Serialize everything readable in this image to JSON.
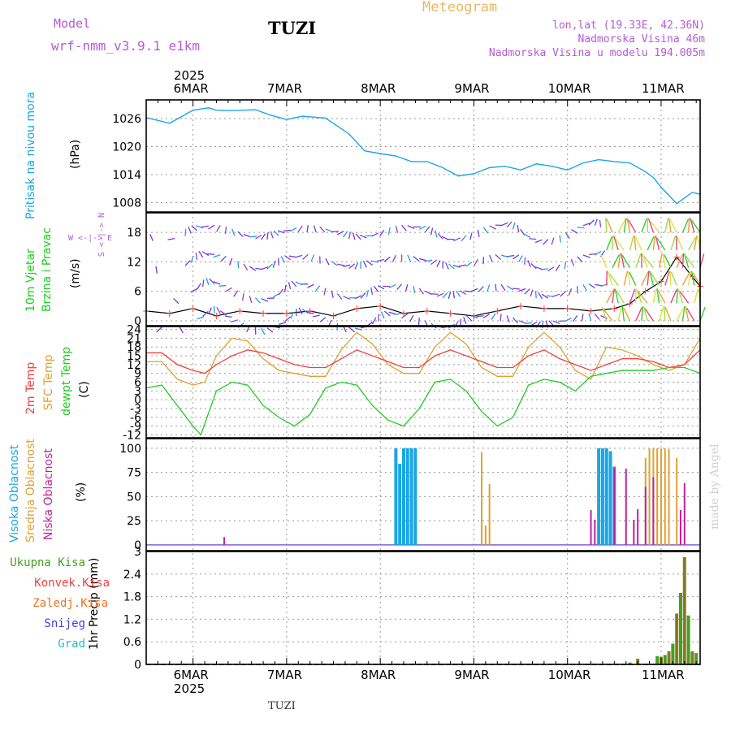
{
  "header": {
    "model_label": "Model",
    "model_name": "wrf-nmm_v3.9.1 e1km",
    "station": "TUZI",
    "product": "Meteogram",
    "coords": "lon,lat (19.33E, 42.36N)",
    "elevation": "Nadmorska Visina 46m",
    "model_elevation": "Nadmorska Visina u modelu 194.005m"
  },
  "footer": {
    "station": "TUZI",
    "credit": "made by Angel"
  },
  "time_axis": {
    "year": "2025",
    "labels": [
      "6MAR",
      "7MAR",
      "8MAR",
      "9MAR",
      "10MAR",
      "11MAR"
    ]
  },
  "colors": {
    "pressure": "#1aa6e6",
    "temp2m": "#f04040",
    "sfc_temp": "#e0a030",
    "dewpoint": "#22cc22",
    "high_cloud": "#1aa6e6",
    "mid_cloud": "#e0a030",
    "low_cloud": "#c020a0",
    "total_precip": "#44a020",
    "conv_precip": "#f04040",
    "frozen_precip": "#f07020",
    "snow": "#4040e0",
    "graupel": "#20c0c0"
  },
  "panels": {
    "pressure": {
      "ylabel_name": "Pritisak na nivou mora",
      "ylabel_unit": "(hPa)",
      "ticks": [
        "1026",
        "1020",
        "1014",
        "1008"
      ]
    },
    "wind": {
      "ylabel_name": "10m Vjetar",
      "ylabel_name2": "Brzina i Pravac",
      "ylabel_unit": "(m/s)",
      "compass_ns": "S <-|-> N",
      "compass_we": "W <-|-> E",
      "ticks": [
        "18",
        "12",
        "6",
        "0"
      ]
    },
    "temperature": {
      "label_t2m": "2m Temp",
      "label_sfc": "SFC Temp",
      "label_dew": "dewpt Temp",
      "ylabel_unit": "(C)",
      "ticks": [
        "24",
        "21",
        "18",
        "15",
        "12",
        "9",
        "6",
        "3",
        "0",
        "-3",
        "-6",
        "-9",
        "-12"
      ]
    },
    "clouds": {
      "label_high": "Visoka Oblacnost",
      "label_mid": "Srednja Oblacnost",
      "label_low": "Niska Oblacnost",
      "ylabel_unit": "(%)",
      "ticks": [
        "100",
        "75",
        "50",
        "25",
        "0"
      ]
    },
    "precip": {
      "legend": [
        "Ukupna Kisa",
        "Konvek.Kisa",
        "Zaledj.Kisa",
        "Snijeg",
        "Grad"
      ],
      "ylabel_unit": "1hr Precip (mm)",
      "ticks": [
        "3",
        "2.4",
        "1.8",
        "1.2",
        "0.6",
        "0"
      ]
    }
  },
  "chart_data": [
    {
      "type": "line",
      "title": "",
      "ylabel": "Pritisak na nivou mora (hPa)",
      "x_unit": "hours from 6MAR 00Z",
      "ylim": [
        1006,
        1030
      ],
      "series": [
        {
          "name": "Pritisak na nivou mora",
          "x": [
            -12,
            -6,
            0,
            4,
            6,
            10,
            16,
            20,
            24,
            28,
            34,
            40,
            44,
            48,
            52,
            56,
            60,
            64,
            68,
            72,
            76,
            80,
            84,
            88,
            92,
            96,
            100,
            104,
            108,
            112,
            116,
            118,
            120,
            124,
            128,
            130
          ],
          "y": [
            1026.2,
            1025,
            1027.8,
            1028.3,
            1027.8,
            1027.7,
            1027.9,
            1026.7,
            1025.8,
            1026.5,
            1026.1,
            1022.7,
            1019.1,
            1018.5,
            1018.0,
            1016.8,
            1016.8,
            1015.5,
            1013.7,
            1014.2,
            1015.5,
            1015.8,
            1015.0,
            1016.3,
            1015.8,
            1015.0,
            1016.5,
            1017.2,
            1016.8,
            1016.5,
            1014.6,
            1013.4,
            1011.3,
            1007.8,
            1010.2,
            1009.8
          ]
        }
      ]
    },
    {
      "type": "line",
      "title": "",
      "ylabel": "10m Vjetar Brzina i Pravac (m/s)",
      "x_unit": "hours from 6MAR 00Z",
      "ylim": [
        -1,
        22
      ],
      "series": [
        {
          "name": "",
          "x": [
            -12,
            -6,
            0,
            6,
            12,
            18,
            24,
            30,
            36,
            42,
            48,
            54,
            60,
            66,
            72,
            78,
            84,
            90,
            96,
            102,
            108,
            112,
            116,
            120,
            124,
            128,
            130
          ],
          "y": [
            2.0,
            1.5,
            2.5,
            1.0,
            2.0,
            1.5,
            1.5,
            2.0,
            1.0,
            2.5,
            3.0,
            1.5,
            2.0,
            1.5,
            1.0,
            2.0,
            3.0,
            2.5,
            2.5,
            2.0,
            2.5,
            3.5,
            6.0,
            8.0,
            13.0,
            9.0,
            7.0
          ]
        }
      ]
    },
    {
      "type": "line",
      "title": "",
      "ylabel": "(C)",
      "x_unit": "hours from 6MAR 00Z",
      "ylim": [
        -13,
        25
      ],
      "series": [
        {
          "name": "2m Temp",
          "x": [
            -12,
            -8,
            -4,
            0,
            3,
            6,
            10,
            14,
            18,
            22,
            26,
            30,
            34,
            38,
            42,
            46,
            50,
            54,
            58,
            62,
            66,
            70,
            74,
            78,
            82,
            86,
            90,
            94,
            98,
            102,
            106,
            110,
            114,
            118,
            122,
            126,
            130
          ],
          "y": [
            16,
            16,
            12,
            10,
            9,
            12,
            15,
            17,
            16,
            14,
            12,
            11,
            11,
            14,
            17,
            15,
            13,
            11,
            11,
            15,
            17,
            15,
            13,
            11,
            11,
            15,
            17,
            14,
            12,
            10,
            12,
            14,
            14,
            13,
            11,
            12,
            17
          ]
        },
        {
          "name": "SFC Temp",
          "x": [
            -12,
            -8,
            -4,
            0,
            3,
            6,
            10,
            14,
            18,
            22,
            26,
            30,
            34,
            38,
            42,
            46,
            50,
            54,
            58,
            62,
            66,
            70,
            74,
            78,
            82,
            86,
            90,
            94,
            98,
            102,
            106,
            110,
            114,
            118,
            122,
            126,
            130
          ],
          "y": [
            13,
            13,
            7,
            5,
            6,
            15,
            21,
            20,
            14,
            10,
            9,
            8,
            8,
            17,
            23,
            19,
            12,
            9,
            9,
            18,
            23,
            19,
            11,
            8,
            8,
            18,
            23,
            18,
            10,
            7,
            18,
            17,
            15,
            12,
            10,
            12,
            21
          ]
        },
        {
          "name": "dewpt Temp",
          "x": [
            -12,
            -8,
            -4,
            0,
            2,
            6,
            10,
            14,
            18,
            22,
            26,
            30,
            34,
            38,
            42,
            46,
            50,
            54,
            58,
            62,
            66,
            70,
            74,
            78,
            82,
            86,
            90,
            94,
            98,
            102,
            106,
            110,
            114,
            118,
            122,
            126,
            130
          ],
          "y": [
            4,
            5,
            -2,
            -9,
            -12,
            3,
            6,
            5,
            -2,
            -6,
            -9,
            -5,
            4,
            6,
            5,
            -2,
            -7,
            -9,
            -3,
            6,
            7,
            3,
            -4,
            -9,
            -6,
            5,
            7,
            6,
            3,
            8,
            9,
            10,
            10,
            10,
            11,
            11,
            9
          ]
        }
      ]
    },
    {
      "type": "bar",
      "title": "",
      "ylabel": "(%)",
      "x_unit": "hours from 6MAR 00Z",
      "ylim": [
        0,
        100
      ],
      "series": [
        {
          "name": "Visoka Oblacnost",
          "x": [
            52,
            53,
            54,
            55,
            56,
            57,
            104,
            105,
            106,
            107,
            108
          ],
          "values": [
            100,
            84,
            100,
            100,
            100,
            100,
            100,
            100,
            100,
            97,
            81
          ]
        },
        {
          "name": "Srednja Oblacnost",
          "x": [
            74,
            75,
            76,
            116,
            117,
            118,
            119,
            120,
            121,
            122,
            124
          ],
          "values": [
            96,
            20,
            63,
            90,
            100,
            100,
            100,
            100,
            100,
            99,
            90
          ]
        },
        {
          "name": "Niska Oblacnost",
          "x": [
            8,
            102,
            103,
            108,
            111,
            113,
            114,
            116,
            118,
            125,
            126
          ],
          "values": [
            8,
            36,
            26,
            80,
            79,
            26,
            37,
            60,
            70,
            36,
            64
          ]
        }
      ]
    },
    {
      "type": "bar",
      "title": "",
      "ylabel": "1hr Precip (mm)",
      "x_unit": "hours from 6MAR 00Z",
      "ylim": [
        0,
        3
      ],
      "series": [
        {
          "name": "Ukupna Kisa",
          "x": [
            112,
            114,
            119,
            120,
            121,
            122,
            123,
            124,
            125,
            126,
            127,
            128,
            129
          ],
          "values": [
            0.05,
            0.15,
            0.22,
            0.2,
            0.25,
            0.35,
            0.55,
            1.35,
            1.9,
            2.85,
            1.3,
            0.35,
            0.3
          ]
        }
      ]
    }
  ]
}
